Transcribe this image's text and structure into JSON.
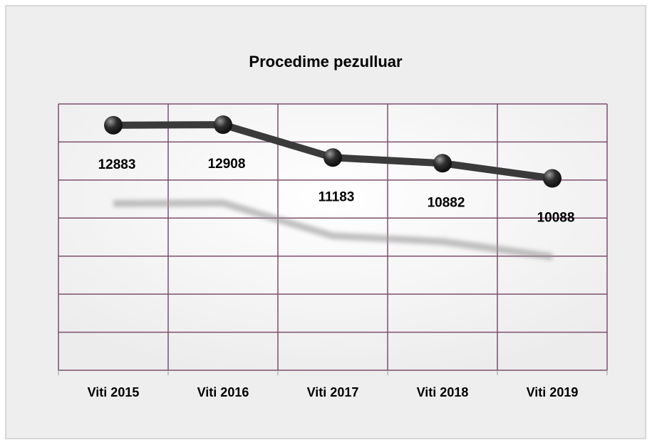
{
  "chart_data": {
    "type": "line",
    "title": "Procedime pezulluar",
    "categories": [
      "Viti 2015",
      "Viti 2016",
      "Viti 2017",
      "Viti 2018",
      "Viti 2019"
    ],
    "values": [
      12883,
      12908,
      11183,
      10882,
      10088
    ],
    "color": "#3a3a3a",
    "ylim": [
      0,
      14000
    ],
    "yticks": [
      0,
      2000,
      4000,
      6000,
      8000,
      10000,
      12000,
      14000
    ],
    "grid": true
  }
}
